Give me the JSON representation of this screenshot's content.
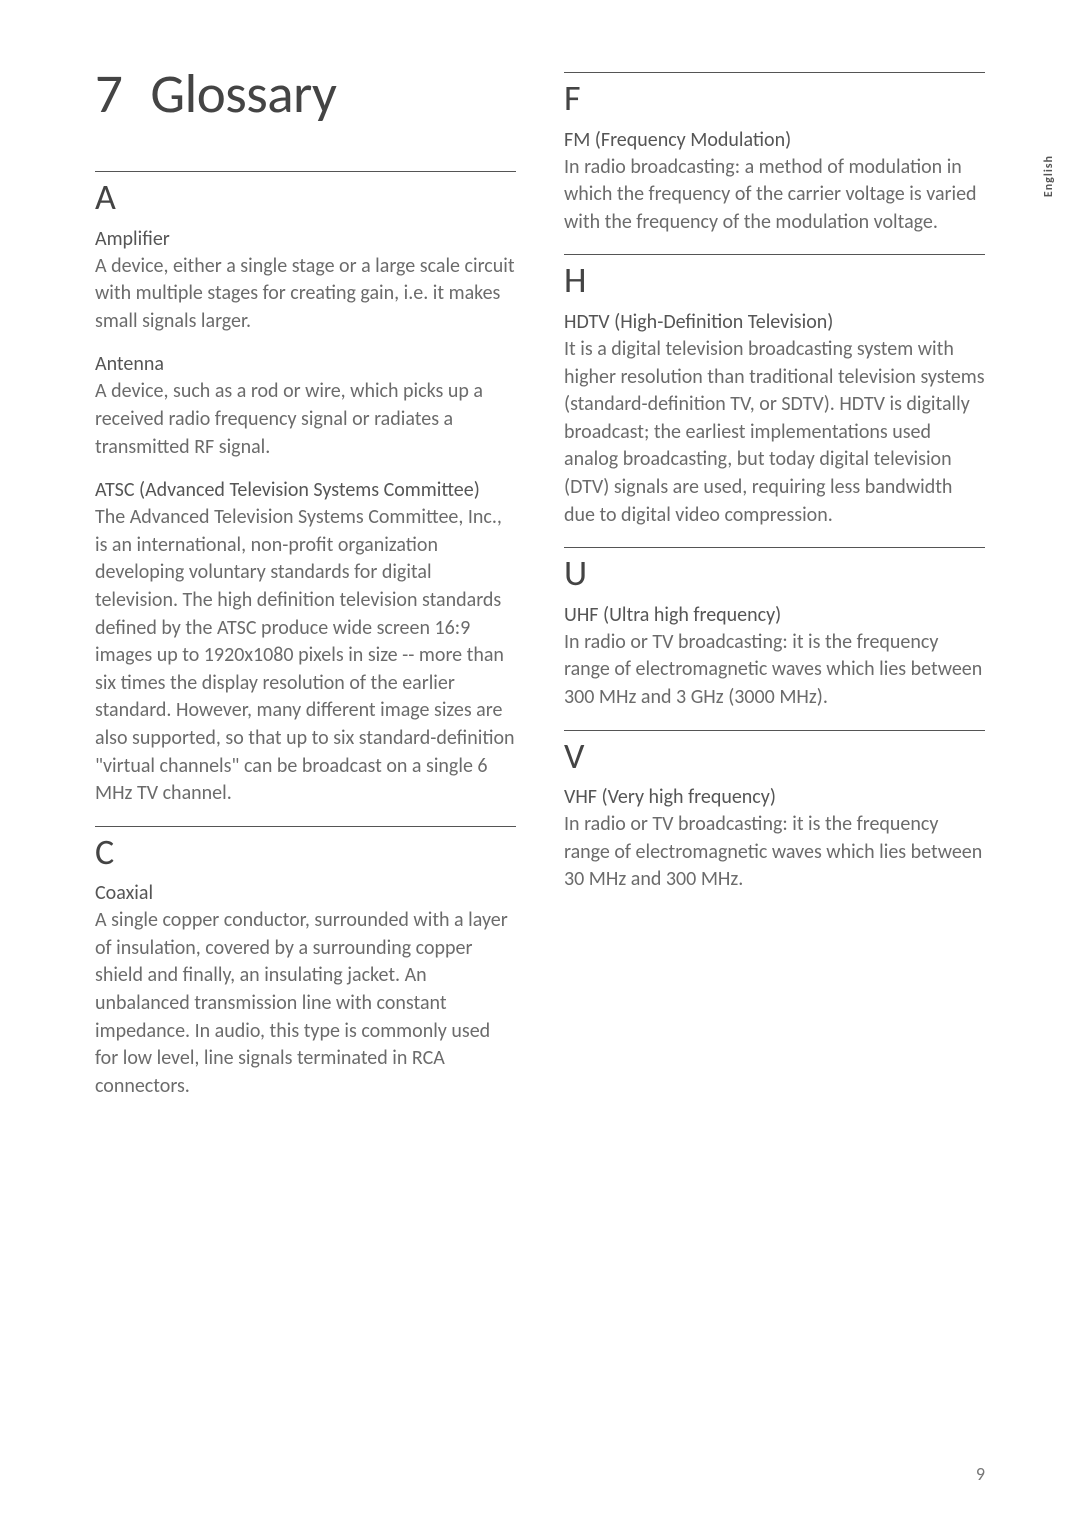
{
  "chapter": {
    "number": "7",
    "title": "Glossary"
  },
  "sideLabel": "English",
  "pageNumber": "9",
  "left": {
    "A": {
      "letter": "A",
      "entries": [
        {
          "term": "Amplifier",
          "def": "A device, either a single stage or a large scale circuit with multiple stages for creating gain, i.e. it makes small signals larger."
        },
        {
          "term": "Antenna",
          "def": "A device, such as a rod or wire, which picks up a received radio frequency signal or radiates a transmitted RF signal."
        },
        {
          "term": "ATSC (Advanced Television Systems Committee)",
          "def": "The Advanced Television Systems Committee, Inc., is an international, non-profit organization developing voluntary standards for digital television. The high definition television standards defined by the ATSC produce wide screen 16:9 images up to 1920x1080 pixels in size -- more than six times the display resolution of the earlier standard. However, many different image sizes are also supported, so that up to six standard-definition \"virtual channels\" can be broadcast on a single 6 MHz TV channel."
        }
      ]
    },
    "C": {
      "letter": "C",
      "entries": [
        {
          "term": "Coaxial",
          "def": "A single copper conductor, surrounded with a layer of insulation, covered by a surrounding copper shield and finally, an insulating jacket. An unbalanced transmission line with constant impedance. In audio, this type is commonly used for low level, line signals terminated in RCA connectors."
        }
      ]
    }
  },
  "right": {
    "F": {
      "letter": "F",
      "entries": [
        {
          "term": "FM (Frequency Modulation)",
          "def": "In radio broadcasting: a method of modulation in which the frequency of the carrier voltage is varied with the frequency of the modulation voltage."
        }
      ]
    },
    "H": {
      "letter": "H",
      "entries": [
        {
          "term": "HDTV (High-Definition Television)",
          "def": "It is a digital television broadcasting system with higher resolution than traditional television systems (standard-definition TV, or SDTV). HDTV is digitally broadcast; the earliest implementations used analog broadcasting, but today digital television (DTV) signals are used, requiring less bandwidth due to digital video compression."
        }
      ]
    },
    "U": {
      "letter": "U",
      "entries": [
        {
          "term": "UHF (Ultra high frequency)",
          "def": "In radio or TV broadcasting: it is the frequency range of electromagnetic waves which lies between 300 MHz and 3 GHz (3000 MHz)."
        }
      ]
    },
    "V": {
      "letter": "V",
      "entries": [
        {
          "term": "VHF (Very high frequency)",
          "def": "In radio or TV broadcasting: it is the frequency range of electromagnetic waves which lies between 30 MHz and 300 MHz."
        }
      ]
    }
  }
}
